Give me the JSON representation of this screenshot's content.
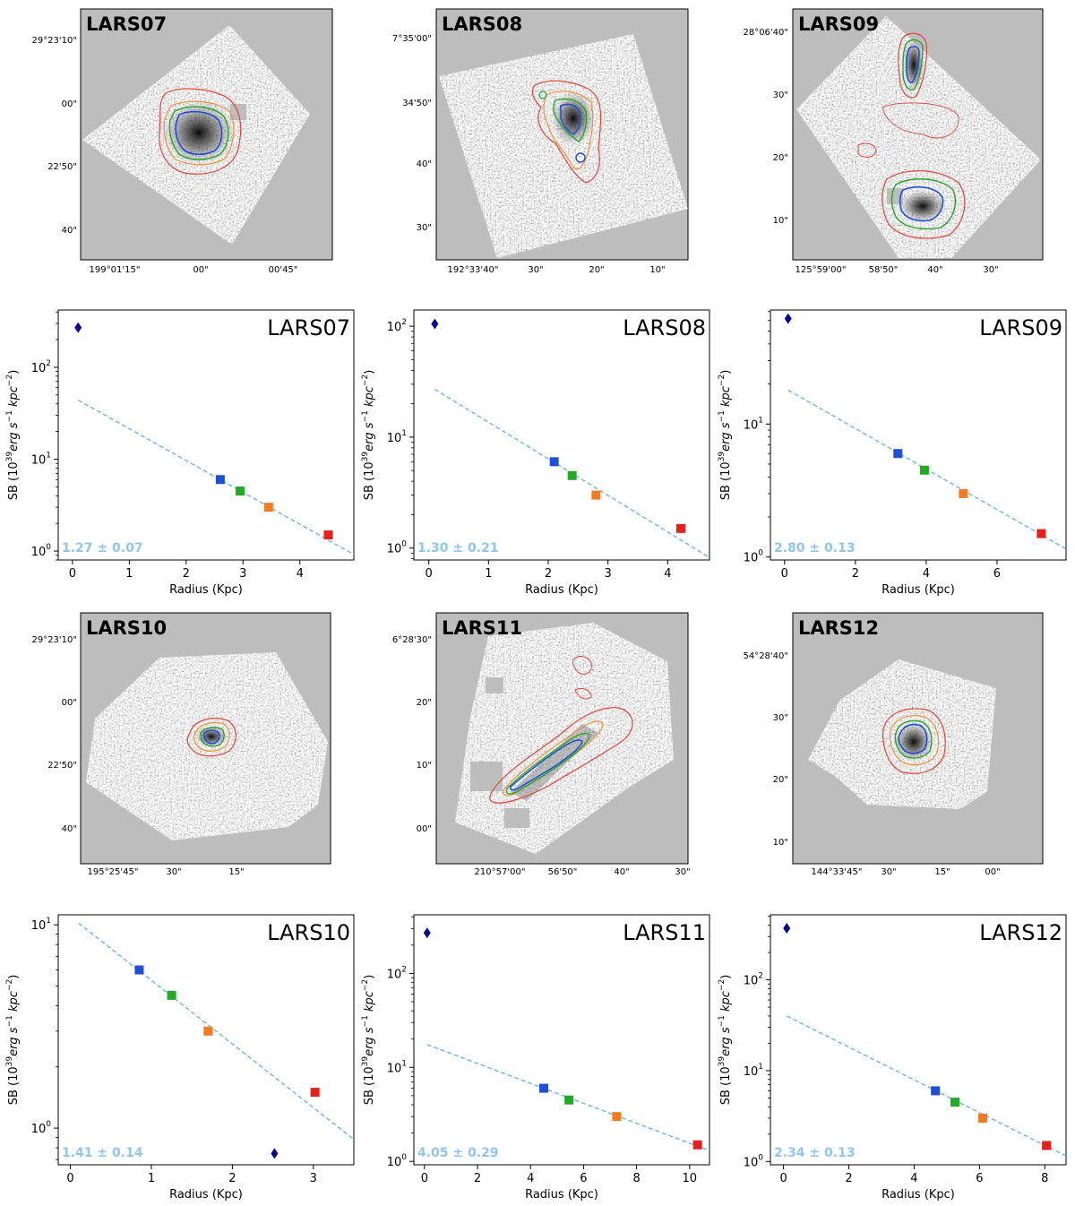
{
  "colors": {
    "blue": "#1f4fd8",
    "green": "#22aa22",
    "orange": "#f47c20",
    "red": "#e8201c",
    "navy": "#0a0a8a",
    "fit": "#6cb4e8",
    "fit_text": "#8ec6ef",
    "panel_bg": "#bdbdbd"
  },
  "images": [
    {
      "name": "LARS07",
      "ra_ticks": [
        "199°01'15\"",
        "00\"",
        "00'45\""
      ],
      "dec_ticks": [
        "29°23'10\"",
        "00\"",
        "22'50\"",
        "40\""
      ]
    },
    {
      "name": "LARS08",
      "ra_ticks": [
        "192°33'40\"",
        "30\"",
        "20\"",
        "10\""
      ],
      "dec_ticks": [
        "7°35'00\"",
        "34'50\"",
        "40\"",
        "30\""
      ]
    },
    {
      "name": "LARS09",
      "ra_ticks": [
        "125°59'00\"",
        "58'50\"",
        "40\"",
        "30\""
      ],
      "dec_ticks": [
        "28°06'40\"",
        "30\"",
        "20\"",
        "10\""
      ]
    },
    {
      "name": "LARS10",
      "ra_ticks": [
        "195°25'45\"",
        "30\"",
        "15\""
      ],
      "dec_ticks": [
        "29°23'10\"",
        "00\"",
        "22'50\"",
        "40\""
      ]
    },
    {
      "name": "LARS11",
      "ra_ticks": [
        "210°57'00\"",
        "56'50\"",
        "40\"",
        "30\""
      ],
      "dec_ticks": [
        "6°28'30\"",
        "20\"",
        "10\"",
        "00\""
      ]
    },
    {
      "name": "LARS12",
      "ra_ticks": [
        "144°33'45\"",
        "30\"",
        "15\"",
        "00\""
      ],
      "dec_ticks": [
        "54°28'40\"",
        "30\"",
        "20\"",
        "10\""
      ]
    }
  ],
  "chart_data": [
    {
      "type": "scatter",
      "title": "LARS07",
      "xlabel": "Radius (Kpc)",
      "ylabel": "SB (10^39 erg s^-1 kpc^-2)",
      "yscale": "log",
      "xlim": [
        -0.25,
        4.95
      ],
      "ylim": [
        0.8,
        420
      ],
      "xticks": [
        0,
        1,
        2,
        3,
        4
      ],
      "yticks": [
        1,
        10,
        100
      ],
      "central_point": {
        "x": 0.1,
        "y": 270,
        "marker": "diamond"
      },
      "points": [
        {
          "x": 2.6,
          "y": 6.0,
          "color": "blue"
        },
        {
          "x": 2.95,
          "y": 4.5,
          "color": "green"
        },
        {
          "x": 3.45,
          "y": 3.0,
          "color": "orange"
        },
        {
          "x": 4.5,
          "y": 1.5,
          "color": "red"
        }
      ],
      "fit_line": {
        "x": [
          0.1,
          4.95
        ],
        "y": [
          44,
          0.92
        ]
      },
      "fit_label": "1.27 ± 0.07"
    },
    {
      "type": "scatter",
      "title": "LARS08",
      "xlabel": "Radius (Kpc)",
      "ylabel": "SB (10^39 erg s^-1 kpc^-2)",
      "yscale": "log",
      "xlim": [
        -0.25,
        4.7
      ],
      "ylim": [
        0.78,
        140
      ],
      "xticks": [
        0,
        1,
        2,
        3,
        4
      ],
      "yticks": [
        1,
        10,
        100
      ],
      "central_point": {
        "x": 0.1,
        "y": 105,
        "marker": "diamond"
      },
      "points": [
        {
          "x": 2.1,
          "y": 6.0,
          "color": "blue"
        },
        {
          "x": 2.4,
          "y": 4.5,
          "color": "green"
        },
        {
          "x": 2.8,
          "y": 3.0,
          "color": "orange"
        },
        {
          "x": 4.22,
          "y": 1.5,
          "color": "red"
        }
      ],
      "fit_line": {
        "x": [
          0.1,
          4.7
        ],
        "y": [
          27,
          0.82
        ]
      },
      "fit_label": "1.30 ± 0.21"
    },
    {
      "type": "scatter",
      "title": "LARS09",
      "xlabel": "Radius (Kpc)",
      "ylabel": "SB (10^39 erg s^-1 kpc^-2)",
      "yscale": "log",
      "xlim": [
        -0.4,
        7.95
      ],
      "ylim": [
        0.95,
        72
      ],
      "xticks": [
        0,
        2,
        4,
        6
      ],
      "yticks": [
        1,
        10
      ],
      "central_point": {
        "x": 0.1,
        "y": 62,
        "marker": "diamond"
      },
      "points": [
        {
          "x": 3.2,
          "y": 6.0,
          "color": "blue"
        },
        {
          "x": 3.95,
          "y": 4.5,
          "color": "green"
        },
        {
          "x": 5.05,
          "y": 3.0,
          "color": "orange"
        },
        {
          "x": 7.25,
          "y": 1.5,
          "color": "red"
        }
      ],
      "fit_line": {
        "x": [
          0.1,
          7.95
        ],
        "y": [
          18,
          1.15
        ]
      },
      "fit_label": "2.80 ± 0.13"
    },
    {
      "type": "scatter",
      "title": "LARS10",
      "xlabel": "Radius (Kpc)",
      "ylabel": "SB (10^39 erg s^-1 kpc^-2)",
      "yscale": "log",
      "xlim": [
        -0.15,
        3.5
      ],
      "ylim": [
        0.66,
        11.2
      ],
      "xticks": [
        0,
        1,
        2,
        3
      ],
      "yticks": [
        1,
        10
      ],
      "central_point": {
        "x": 2.52,
        "y": 0.75,
        "marker": "diamond"
      },
      "points": [
        {
          "x": 0.85,
          "y": 6.0,
          "color": "blue"
        },
        {
          "x": 1.25,
          "y": 4.5,
          "color": "green"
        },
        {
          "x": 1.7,
          "y": 3.0,
          "color": "orange"
        },
        {
          "x": 3.02,
          "y": 1.5,
          "color": "red"
        }
      ],
      "fit_line": {
        "x": [
          0.1,
          3.5
        ],
        "y": [
          10.2,
          0.88
        ]
      },
      "fit_label": "1.41 ± 0.14"
    },
    {
      "type": "scatter",
      "title": "LARS11",
      "xlabel": "Radius (Kpc)",
      "ylabel": "SB (10^39 erg s^-1 kpc^-2)",
      "yscale": "log",
      "xlim": [
        -0.4,
        10.75
      ],
      "ylim": [
        0.92,
        420
      ],
      "xticks": [
        0,
        2,
        4,
        6,
        8,
        10
      ],
      "yticks": [
        1,
        10,
        100
      ],
      "central_point": {
        "x": 0.1,
        "y": 270,
        "marker": "diamond"
      },
      "points": [
        {
          "x": 4.5,
          "y": 6.0,
          "color": "blue"
        },
        {
          "x": 5.45,
          "y": 4.5,
          "color": "green"
        },
        {
          "x": 7.25,
          "y": 3.0,
          "color": "orange"
        },
        {
          "x": 10.3,
          "y": 1.5,
          "color": "red"
        }
      ],
      "fit_line": {
        "x": [
          0.1,
          10.75
        ],
        "y": [
          17.5,
          1.3
        ]
      },
      "fit_label": "4.05 ± 0.29"
    },
    {
      "type": "scatter",
      "title": "LARS12",
      "xlabel": "Radius (Kpc)",
      "ylabel": "SB (10^39 erg s^-1 kpc^-2)",
      "yscale": "log",
      "xlim": [
        -0.4,
        8.65
      ],
      "ylim": [
        0.92,
        520
      ],
      "xticks": [
        0,
        2,
        4,
        6,
        8
      ],
      "yticks": [
        1,
        10,
        100
      ],
      "central_point": {
        "x": 0.1,
        "y": 370,
        "marker": "diamond"
      },
      "points": [
        {
          "x": 4.65,
          "y": 6.0,
          "color": "blue"
        },
        {
          "x": 5.25,
          "y": 4.5,
          "color": "green"
        },
        {
          "x": 6.1,
          "y": 3.0,
          "color": "orange"
        },
        {
          "x": 8.05,
          "y": 1.5,
          "color": "red"
        }
      ],
      "fit_line": {
        "x": [
          0.1,
          8.65
        ],
        "y": [
          40,
          1.15
        ]
      },
      "fit_label": "2.34 ± 0.13"
    }
  ]
}
